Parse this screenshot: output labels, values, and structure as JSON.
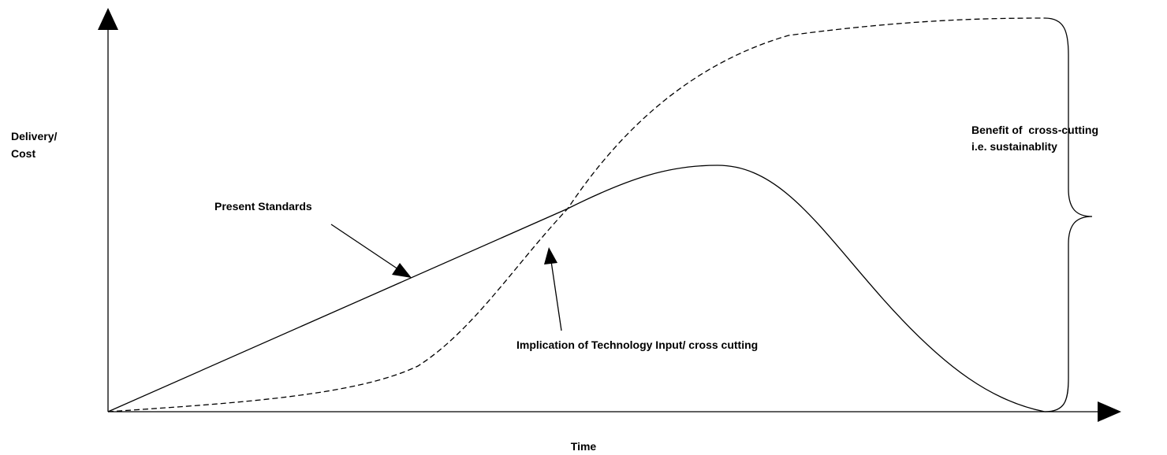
{
  "axes": {
    "y_label": [
      "Delivery/",
      "Cost"
    ],
    "x_label": "Time"
  },
  "curves": {
    "present": {
      "label": "Present Standards"
    },
    "technology": {
      "label": "Implication of Technology Input/ cross cutting"
    }
  },
  "brace": {
    "label": [
      "Benefit of  cross-cutting",
      "i.e. sustainablity"
    ]
  }
}
